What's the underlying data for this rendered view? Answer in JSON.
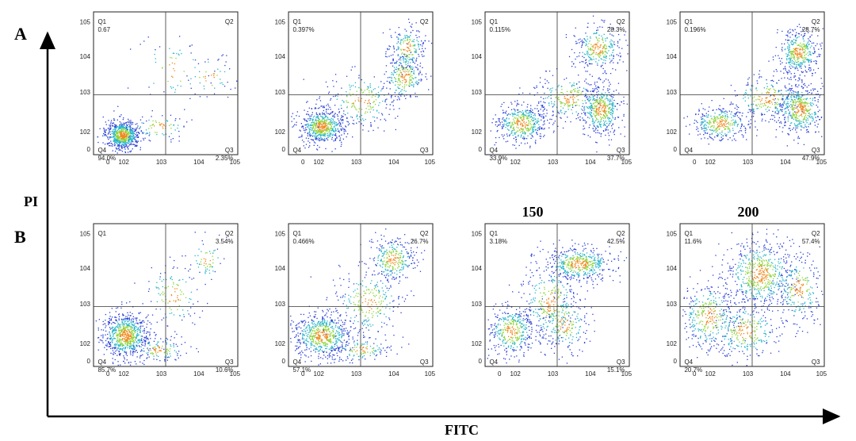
{
  "figure": {
    "panel_labels": [
      "A",
      "B"
    ],
    "y_axis_label": "PI",
    "x_axis_label": "FITC",
    "group_labels": [
      "",
      "",
      "150",
      "200"
    ]
  },
  "chart_data": {
    "type": "scatter",
    "description_axes": "log-scale flow cytometry density plots, FITC (x) vs PI (y)",
    "x_ticks": [
      "0",
      "10^2",
      "10^3",
      "10^4",
      "10^5"
    ],
    "y_ticks": [
      "0",
      "10^2",
      "10^3",
      "10^4",
      "10^5"
    ],
    "quadrant_names": [
      "Q1",
      "Q2",
      "Q3",
      "Q4"
    ],
    "rows": [
      {
        "label": "A",
        "panels": [
          {
            "Q1": "0.67",
            "Q2": "",
            "Q3": "2.35%",
            "Q4": "94.0%"
          },
          {
            "Q1": "0.397%",
            "Q2": "",
            "Q3": "",
            "Q4": ""
          },
          {
            "Q1": "0.115%",
            "Q2": "28.3%",
            "Q3": "37.7%",
            "Q4": "33.9%"
          },
          {
            "Q1": "0.196%",
            "Q2": "28.7%",
            "Q3": "47.9%",
            "Q4": ""
          }
        ]
      },
      {
        "label": "B",
        "panels": [
          {
            "Q1": "",
            "Q2": "3.54%",
            "Q3": "10.6%",
            "Q4": "85.7%"
          },
          {
            "Q1": "0.466%",
            "Q2": "26.7%",
            "Q3": "",
            "Q4": "57.1%"
          },
          {
            "Q1": "3.18%",
            "Q2": "42.5%",
            "Q3": "15.1%",
            "Q4": ""
          },
          {
            "Q1": "11.6%",
            "Q2": "57.4%",
            "Q3": "",
            "Q4": "20.7%"
          }
        ]
      }
    ]
  }
}
